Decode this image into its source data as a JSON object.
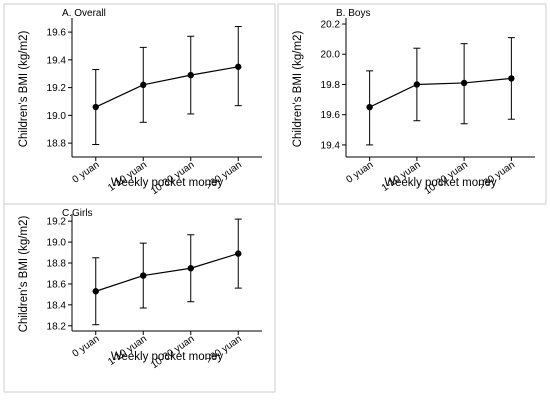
{
  "chart_data": [
    {
      "type": "line",
      "title": "A. Overall",
      "xlabel": "Weekly pocket money",
      "ylabel": "Children's BMI (kg/m2)",
      "categories": [
        "0 yuan",
        "1-10 yuan",
        "10-30 yuan",
        ">30 yuan"
      ],
      "yticks": [
        "18.8",
        "19.0",
        "19.2",
        "19.4",
        "19.6"
      ],
      "ylim": [
        18.7,
        19.68
      ],
      "series": [
        {
          "values": [
            19.06,
            19.22,
            19.29,
            19.35
          ],
          "lower": [
            18.79,
            18.95,
            19.01,
            19.07
          ],
          "upper": [
            19.33,
            19.49,
            19.57,
            19.64
          ]
        }
      ]
    },
    {
      "type": "line",
      "title": "B. Boys",
      "xlabel": "Weekly pocket money",
      "ylabel": "Children's BMI (kg/m2)",
      "categories": [
        "0 yuan",
        "1-10 yuan",
        "10-30 yuan",
        ">30 yuan"
      ],
      "yticks": [
        "19.4",
        "19.6",
        "19.8",
        "20.0",
        "20.2"
      ],
      "ylim": [
        19.32,
        20.22
      ],
      "series": [
        {
          "values": [
            19.65,
            19.8,
            19.81,
            19.84
          ],
          "lower": [
            19.4,
            19.56,
            19.54,
            19.57
          ],
          "upper": [
            19.89,
            20.04,
            20.07,
            20.11
          ]
        }
      ]
    },
    {
      "type": "line",
      "title": "C.Girls",
      "xlabel": "Weekly pocket money",
      "ylabel": "Children's BMI (kg/m2)",
      "categories": [
        "0 yuan",
        "1-10 yuan",
        "10-30 yuan",
        ">30 yuan"
      ],
      "yticks": [
        "18.2",
        "18.4",
        "18.6",
        "18.8",
        "19.0",
        "19.2"
      ],
      "ylim": [
        18.15,
        19.24
      ],
      "series": [
        {
          "values": [
            18.53,
            18.68,
            18.75,
            18.89
          ],
          "lower": [
            18.21,
            18.37,
            18.43,
            18.56
          ],
          "upper": [
            18.85,
            18.99,
            19.07,
            19.22
          ]
        }
      ]
    }
  ]
}
